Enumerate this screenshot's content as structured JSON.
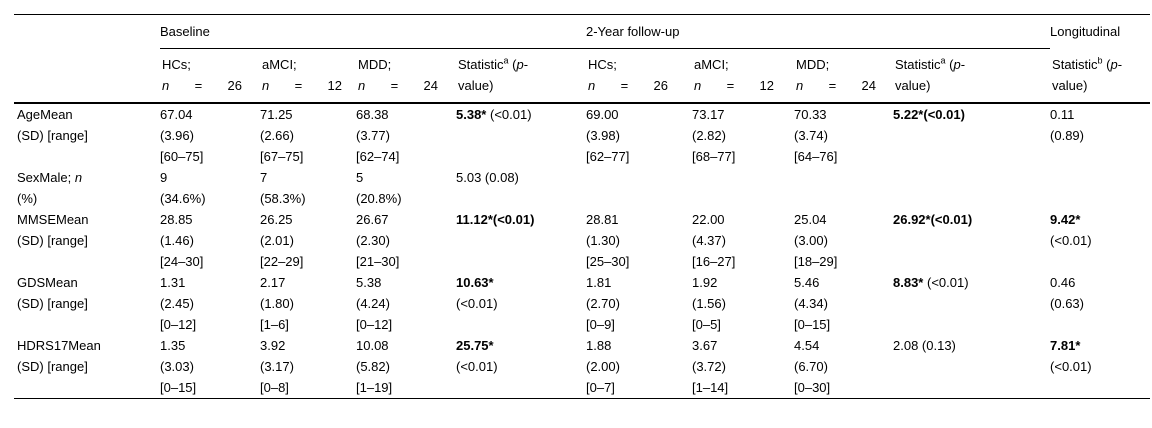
{
  "table": {
    "header": {
      "groups": [
        {
          "label": "Baseline"
        },
        {
          "label": "2-Year follow-up"
        },
        {
          "label": "Longitudinal"
        }
      ],
      "cohorts": [
        {
          "name": "HCs;",
          "n": "n",
          "eq": "=",
          "count": "26"
        },
        {
          "name": "aMCI;",
          "n": "n",
          "eq": "=",
          "count": "12"
        },
        {
          "name": "MDD;",
          "n": "n",
          "eq": "=",
          "count": "24"
        }
      ],
      "stat_a": {
        "label": "Statistic",
        "sup": "a",
        "pre": " (",
        "p": "p",
        "post": "-",
        "line2": "value)"
      },
      "stat_b": {
        "label": "Statistic",
        "sup": "b",
        "pre": " (",
        "p": "p",
        "post": "-",
        "line2": "value)"
      }
    },
    "cell_names": [
      "baseline-hcs",
      "baseline-amci",
      "baseline-mdd",
      "baseline-statistic",
      "followup-hcs",
      "followup-amci",
      "followup-mdd",
      "followup-statistic",
      "longitudinal-statistic"
    ],
    "rows": [
      {
        "id": "age",
        "label": [
          [
            "AgeMean"
          ],
          [
            "(SD) [range]"
          ]
        ],
        "cells": [
          [
            [
              "67.04"
            ],
            [
              "(3.96)"
            ],
            [
              "[60–75]"
            ]
          ],
          [
            [
              "71.25"
            ],
            [
              "(2.66)"
            ],
            [
              "[67–75]"
            ]
          ],
          [
            [
              "68.38"
            ],
            [
              "(3.77)"
            ],
            [
              "[62–74]"
            ]
          ],
          [
            [
              {
                "t": "5.38*",
                "b": true
              },
              " (<0.01)"
            ]
          ],
          [
            [
              "69.00"
            ],
            [
              "(3.98)"
            ],
            [
              "[62–77]"
            ]
          ],
          [
            [
              "73.17"
            ],
            [
              "(2.82)"
            ],
            [
              "[68–77]"
            ]
          ],
          [
            [
              "70.33"
            ],
            [
              "(3.74)"
            ],
            [
              "[64–76]"
            ]
          ],
          [
            [
              {
                "t": "5.22*(<0.01)",
                "b": true
              }
            ]
          ],
          [
            [
              "0.11"
            ],
            [
              "(0.89)"
            ]
          ]
        ]
      },
      {
        "id": "sex-male",
        "label": [
          [
            "SexMale; ",
            {
              "t": "n",
              "i": true
            }
          ],
          [
            "(%)"
          ]
        ],
        "cells": [
          [
            [
              "9"
            ],
            [
              "(34.6%)"
            ]
          ],
          [
            [
              "7"
            ],
            [
              "(58.3%)"
            ]
          ],
          [
            [
              "5"
            ],
            [
              "(20.8%)"
            ]
          ],
          [
            [
              "5.03 (0.08)"
            ]
          ],
          [],
          [],
          [],
          [],
          []
        ]
      },
      {
        "id": "mmse",
        "label": [
          [
            "MMSEMean"
          ],
          [
            "(SD) [range]"
          ]
        ],
        "cells": [
          [
            [
              "28.85"
            ],
            [
              "(1.46)"
            ],
            [
              "[24–30]"
            ]
          ],
          [
            [
              "26.25"
            ],
            [
              "(2.01)"
            ],
            [
              "[22–29]"
            ]
          ],
          [
            [
              "26.67"
            ],
            [
              "(2.30)"
            ],
            [
              "[21–30]"
            ]
          ],
          [
            [
              {
                "t": "11.12*(<0.01)",
                "b": true
              }
            ]
          ],
          [
            [
              "28.81"
            ],
            [
              "(1.30)"
            ],
            [
              "[25–30]"
            ]
          ],
          [
            [
              "22.00"
            ],
            [
              "(4.37)"
            ],
            [
              "[16–27]"
            ]
          ],
          [
            [
              "25.04"
            ],
            [
              "(3.00)"
            ],
            [
              "[18–29]"
            ]
          ],
          [
            [
              {
                "t": "26.92*(<0.01)",
                "b": true
              }
            ]
          ],
          [
            [
              {
                "t": "9.42*",
                "b": true
              }
            ],
            [
              "(<0.01)"
            ]
          ]
        ]
      },
      {
        "id": "gds",
        "label": [
          [
            "GDSMean"
          ],
          [
            "(SD) [range]"
          ]
        ],
        "cells": [
          [
            [
              "1.31"
            ],
            [
              "(2.45)"
            ],
            [
              "[0–12]"
            ]
          ],
          [
            [
              "2.17"
            ],
            [
              "(1.80)"
            ],
            [
              "[1–6]"
            ]
          ],
          [
            [
              "5.38"
            ],
            [
              "(4.24)"
            ],
            [
              "[0–12]"
            ]
          ],
          [
            [
              {
                "t": "10.63*",
                "b": true
              }
            ],
            [
              "(<0.01)"
            ]
          ],
          [
            [
              "1.81"
            ],
            [
              "(2.70)"
            ],
            [
              "[0–9]"
            ]
          ],
          [
            [
              "1.92"
            ],
            [
              "(1.56)"
            ],
            [
              "[0–5]"
            ]
          ],
          [
            [
              "5.46"
            ],
            [
              "(4.34)"
            ],
            [
              "[0–15]"
            ]
          ],
          [
            [
              {
                "t": "8.83*",
                "b": true
              },
              " (<0.01)"
            ]
          ],
          [
            [
              "0.46"
            ],
            [
              "(0.63)"
            ]
          ]
        ]
      },
      {
        "id": "hdrs17",
        "label": [
          [
            "HDRS17Mean"
          ],
          [
            "(SD) [range]"
          ]
        ],
        "cells": [
          [
            [
              "1.35"
            ],
            [
              "(3.03)"
            ],
            [
              "[0–15]"
            ]
          ],
          [
            [
              "3.92"
            ],
            [
              "(3.17)"
            ],
            [
              "[0–8]"
            ]
          ],
          [
            [
              "10.08"
            ],
            [
              "(5.82)"
            ],
            [
              "[1–19]"
            ]
          ],
          [
            [
              {
                "t": "25.75*",
                "b": true
              }
            ],
            [
              "(<0.01)"
            ]
          ],
          [
            [
              "1.88"
            ],
            [
              "(2.00)"
            ],
            [
              "[0–7]"
            ]
          ],
          [
            [
              "3.67"
            ],
            [
              "(3.72)"
            ],
            [
              "[1–14]"
            ]
          ],
          [
            [
              "4.54"
            ],
            [
              "(6.70)"
            ],
            [
              "[0–30]"
            ]
          ],
          [
            [
              "2.08 (0.13)"
            ]
          ],
          [
            [
              {
                "t": "7.81*",
                "b": true
              }
            ],
            [
              "(<0.01)"
            ]
          ]
        ]
      }
    ]
  }
}
